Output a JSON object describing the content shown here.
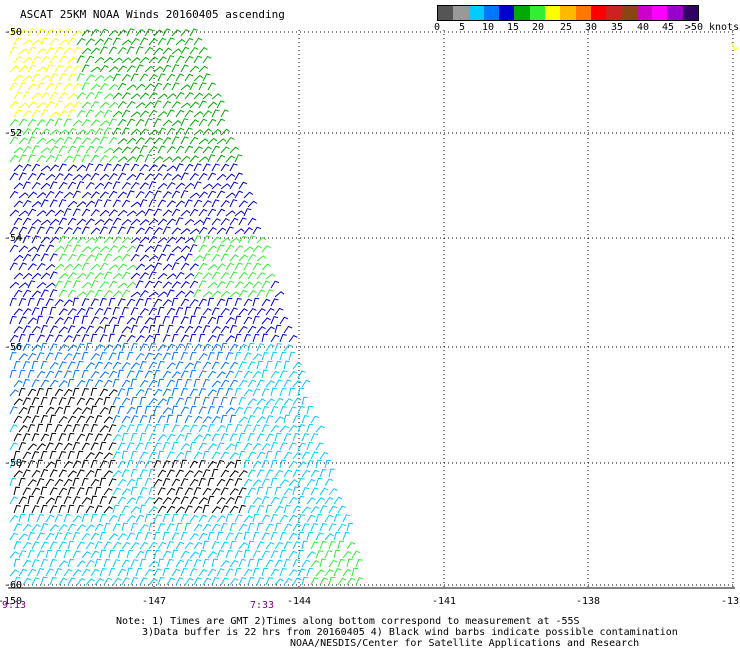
{
  "title": "ASCAT 25KM NOAA Winds 20160405 ascending",
  "legend": {
    "colors": [
      "#555555",
      "#999999",
      "#00ccff",
      "#0077ff",
      "#0000cc",
      "#00aa00",
      "#33ee33",
      "#ffff00",
      "#ffbb00",
      "#ff7700",
      "#ff0000",
      "#cc2222",
      "#8b4513",
      "#cc00cc",
      "#ff00ff",
      "#9900cc",
      "#330066"
    ],
    "labels": [
      "0",
      "5",
      "10",
      "15",
      "20",
      "25",
      "30",
      "35",
      "40",
      "45",
      ">50 knots"
    ]
  },
  "latitudes": [
    "-50",
    "-52",
    "-54",
    "-56",
    "-58",
    "-60"
  ],
  "longitudes": [
    "-150",
    "-147",
    "-144",
    "-141",
    "-138",
    "-13"
  ],
  "times": [
    "9:13",
    "7:33"
  ],
  "notes": {
    "line1": "Note: 1) Times are GMT 2)Times along bottom correspond to measurement at -55S",
    "line2": "3)Data buffer is 22 hrs from 20160405 4) Black wind barbs indicate possible contamination",
    "line3": "NOAA/NESDIS/Center for Satellite Applications and Research"
  },
  "wind_regions": {
    "strong_yellow": "#ffff00",
    "dark_green": "#00aa00",
    "light_green": "#33ee33",
    "blue": "#0000cc",
    "mid_blue": "#0077ff",
    "cyan": "#00ccff",
    "black": "#000000"
  }
}
